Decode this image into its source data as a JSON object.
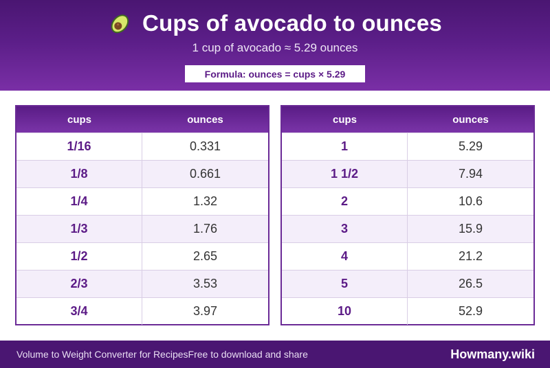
{
  "header": {
    "title": "Cups of avocado to ounces",
    "subtitle": "1 cup of avocado ≈ 5.29 ounces",
    "formula": "Formula: ounces = cups × 5.29",
    "icon": "avocado-icon"
  },
  "tables": {
    "left": {
      "headers": [
        "cups",
        "ounces"
      ],
      "rows": [
        {
          "cups": "1/16",
          "ounces": "0.331"
        },
        {
          "cups": "1/8",
          "ounces": "0.661"
        },
        {
          "cups": "1/4",
          "ounces": "1.32"
        },
        {
          "cups": "1/3",
          "ounces": "1.76"
        },
        {
          "cups": "1/2",
          "ounces": "2.65"
        },
        {
          "cups": "2/3",
          "ounces": "3.53"
        },
        {
          "cups": "3/4",
          "ounces": "3.97"
        }
      ]
    },
    "right": {
      "headers": [
        "cups",
        "ounces"
      ],
      "rows": [
        {
          "cups": "1",
          "ounces": "5.29"
        },
        {
          "cups": "1 1/2",
          "ounces": "7.94"
        },
        {
          "cups": "2",
          "ounces": "10.6"
        },
        {
          "cups": "3",
          "ounces": "15.9"
        },
        {
          "cups": "4",
          "ounces": "21.2"
        },
        {
          "cups": "5",
          "ounces": "26.5"
        },
        {
          "cups": "10",
          "ounces": "52.9"
        }
      ]
    }
  },
  "footer": {
    "left_text": "Volume to Weight Converter for Recipes",
    "mid_text": "Free to download and share",
    "brand": "Howmany.wiki"
  },
  "colors": {
    "primary": "#5b1e88",
    "accent_text": "#5b1a86",
    "row_alt": "#f4eefa"
  }
}
